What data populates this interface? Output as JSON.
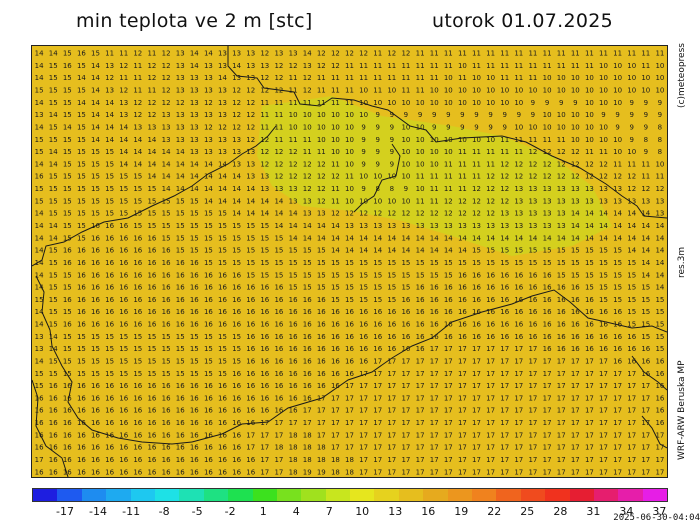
{
  "header": {
    "title": "min teplota ve 2 m [stc]",
    "date": "utorok 01.07.2025"
  },
  "side_labels": {
    "copyright": "(c)meteopress",
    "resolution": "res.3m",
    "model": "WRF-ARW Beruska MP"
  },
  "timestamp": "2025-06-30-04:04",
  "colorbar": {
    "tick_labels": [
      "-17",
      "-14",
      "-11",
      "-8",
      "-5",
      "-2",
      "1",
      "4",
      "7",
      "10",
      "13",
      "16",
      "19",
      "22",
      "25",
      "28",
      "31",
      "34",
      "37"
    ],
    "colors": [
      "#1e1ee0",
      "#1e5af0",
      "#1e8cf0",
      "#1eaaf0",
      "#1ec8f0",
      "#1ee1e6",
      "#1ee1b4",
      "#1ee182",
      "#1ee150",
      "#3ce11e",
      "#78e11e",
      "#a0e11e",
      "#c8e61e",
      "#e6e61e",
      "#e6d21e",
      "#e6be1e",
      "#e6aa1e",
      "#ec961e",
      "#f0821e",
      "#f0641e",
      "#f04b1e",
      "#f0321e",
      "#e61e32",
      "#e61e6e",
      "#e61eaa",
      "#e61ee6"
    ]
  },
  "map": {
    "background": "#e6be1e",
    "cool_area": "#d2d21e",
    "grid_rows": [
      "14 14 15 16 15 11 11 12 11 12 13 14 14 13 13 13 12 13 13 14 12 12 12 12 11 12 12 11 11 11 11 11 11 11 11 11 11 11 11 11 11 11 11 11 11",
      "14 15 16 15 14 13 12 11 12 12 13 14 13 13 14 13 13 12 12 13 12 12 11 11 11 11 11 11 11 11 10 11 11 11 11 11 11 11 11 11 10 10 10 11 10",
      "14 15 15 14 14 12 11 11 12 12 13 13 13 14 13 13 12 12 11 12 11 11 11 11 11 11 11 11 11 10 11 10 10 11 11 11 10 10 10 10 10 10 10 10 10",
      "15 15 15 15 14 13 12 11 11 12 13 13 13 13 12 12 12 12 11 12 11 11 11 10 11 10 11 11 10 10 10 10 10 10 10 10 10 10 10 10 10 10 10 10 10",
      "14 15 15 14 14 14 13 12 12 12 12 13 12 13 12 12 11 11 11 11 11 11 11 10 10 10 10 10 10 10 10 10 10 10 10 9 9 9 9 10 10 10 9 9 9",
      "13 14 15 15 14 14 13 12 12 13 13 13 13 13 12 12 11 11 10 10 10 10 10 10 9 9 9 9 9 9 9 9 9 9 9 9 10 10 10 10 9 9 9 9 9",
      "14 15 14 15 14 14 14 13 13 13 13 13 12 12 12 12 11 11 10 10 10 10 10 9 9 9 10 10 9 9 9 9 9 9 10 10 10 10 10 10 10 9 9 9 8",
      "15 15 15 15 14 14 14 14 14 13 13 13 13 13 13 12 12 11 11 11 10 10 10 9 9 9 10 10 10 10 10 10 10 11 11 11 11 11 10 10 10 10 9 8 8",
      "15 14 15 15 15 15 14 14 14 14 14 13 13 13 13 13 12 12 12 11 11 10 10 9 9 9 10 10 10 10 11 11 11 11 11 12 12 12 12 11 11 10 10 9 8",
      "14 14 15 15 15 15 14 14 14 14 14 14 14 14 13 13 12 12 12 12 12 11 10 9 9 9 10 10 10 11 11 11 11 12 12 12 12 12 12 12 12 11 11 11 10",
      "16 15 15 15 15 15 15 15 14 14 14 14 14 14 14 13 13 12 12 12 12 12 11 10 10 10 10 11 11 11 11 11 12 12 12 12 12 12 12 12 12 12 12 11 11",
      "15 15 15 15 15 15 15 15 15 14 14 14 14 14 14 14 13 13 13 12 12 11 10 9 8 8 9 10 11 11 11 12 12 12 13 13 13 13 13 13 13 13 12 12 12",
      "15 15 15 15 15 15 15 15 15 15 15 15 14 14 14 14 14 14 13 13 12 11 10 10 10 10 10 11 11 12 12 12 12 12 13 13 13 13 13 13 13 13 13 13 13",
      "14 15 15 15 15 15 15 15 15 15 15 15 15 15 14 14 14 14 14 13 13 12 12 12 12 12 12 12 12 12 12 12 12 13 13 13 13 13 14 14 14 14 14 14 13",
      "14 14 15 15 16 16 16 15 15 15 15 15 15 15 15 15 15 14 14 14 14 14 13 13 13 13 13 13 13 13 13 13 13 13 13 13 13 13 14 14 14 14 14 14 14",
      "14 14 15 15 16 16 16 16 16 15 15 15 15 15 15 15 15 15 14 14 14 14 14 14 14 14 14 14 14 14 14 14 14 14 14 14 14 14 14 14 14 14 14 14 14",
      "14 15 16 16 16 16 16 16 16 16 15 15 15 15 15 15 15 15 15 15 15 14 14 14 14 14 14 14 14 14 14 15 15 15 15 15 15 15 15 15 15 15 14 14 14",
      "14 15 16 16 16 16 16 16 16 16 16 16 15 15 15 15 15 15 15 15 15 15 15 15 15 15 15 15 15 15 15 15 15 15 15 15 15 15 15 15 15 15 15 14 14",
      "14 15 15 16 16 16 16 16 16 16 16 16 16 16 16 15 15 15 15 15 15 15 15 15 15 15 15 15 15 15 16 16 16 16 16 16 16 15 15 15 15 15 15 14 14",
      "14 15 15 16 16 16 16 16 16 16 16 16 16 16 16 16 16 16 15 15 15 15 15 15 15 15 15 16 16 16 16 16 16 16 16 16 16 16 16 15 15 15 15 15 14",
      "15 15 16 16 16 16 16 16 16 16 16 16 16 16 16 16 16 16 16 16 16 15 15 15 15 15 16 16 16 16 16 16 16 16 16 16 16 16 16 16 15 15 15 15 15",
      "14 15 15 16 16 16 16 16 16 16 16 16 16 16 16 16 16 16 16 16 16 16 16 16 16 16 16 16 16 16 16 16 16 16 16 16 16 16 16 16 16 16 15 15 15",
      "14 15 16 16 16 16 16 16 16 16 16 16 16 16 16 16 16 16 16 16 16 16 16 16 16 16 16 16 16 16 16 16 16 16 16 16 16 16 16 16 16 16 15 15 15",
      "13 14 15 15 15 15 15 15 15 15 15 15 15 15 15 16 16 16 16 16 16 16 16 16 16 16 16 16 16 16 16 16 16 16 16 16 16 16 16 16 16 16 16 15 15",
      "13 14 15 15 15 15 15 15 15 15 15 15 15 15 15 16 16 16 16 16 16 16 16 16 16 16 16 16 17 17 17 17 17 17 17 17 16 16 16 16 16 16 16 16 15",
      "14 15 15 15 15 15 15 15 15 15 15 15 15 15 15 16 16 16 16 16 16 16 16 16 17 17 17 17 17 17 17 17 17 17 17 17 17 17 17 17 17 16 16 16 16",
      "15 15 15 15 15 15 15 15 15 15 15 15 15 15 16 16 16 16 16 16 16 16 16 17 17 17 17 17 17 17 17 17 17 17 17 17 17 17 17 17 17 17 17 16 16",
      "15 16 16 16 16 16 16 16 16 16 16 16 16 16 16 16 16 16 16 16 16 16 17 17 17 17 17 17 17 17 17 17 17 17 17 17 17 17 17 17 17 17 17 17 16",
      "16 16 16 16 16 16 16 16 16 16 16 16 16 16 16 16 16 16 16 16 17 17 17 17 17 17 17 17 17 17 17 17 17 17 17 17 17 17 17 17 17 17 17 17 16",
      "16 16 16 16 16 16 16 16 16 16 16 16 16 16 16 16 16 16 16 17 17 17 17 17 17 17 17 17 17 17 17 17 17 17 17 17 17 17 17 17 17 17 17 17 16",
      "16 16 16 16 16 16 16 16 16 16 16 16 16 16 16 16 17 17 17 17 17 17 17 17 17 17 17 17 17 17 17 17 17 17 17 17 17 17 17 17 17 17 17 17 16",
      "16 16 16 16 16 16 16 16 16 16 16 16 16 16 16 17 17 17 18 18 17 17 17 17 17 17 17 17 17 17 17 17 17 17 17 17 17 17 17 17 17 17 17 17 17",
      "16 16 16 16 16 16 16 16 16 16 16 16 16 16 16 17 17 18 18 18 18 17 17 17 17 17 17 17 17 17 17 17 17 17 17 17 17 17 17 17 17 17 17 17 17",
      "17 16 16 16 16 16 16 16 16 16 16 16 16 16 16 16 17 17 18 18 18 18 18 17 17 17 17 17 17 17 17 17 17 17 17 17 17 17 17 17 17 17 17 17 17",
      "16 16 16 16 16 16 16 16 16 16 16 16 16 16 16 16 17 17 18 19 19 18 18 17 17 17 17 17 17 17 17 17 17 17 17 17 17 17 17 17 17 17 17 17 17"
    ]
  }
}
